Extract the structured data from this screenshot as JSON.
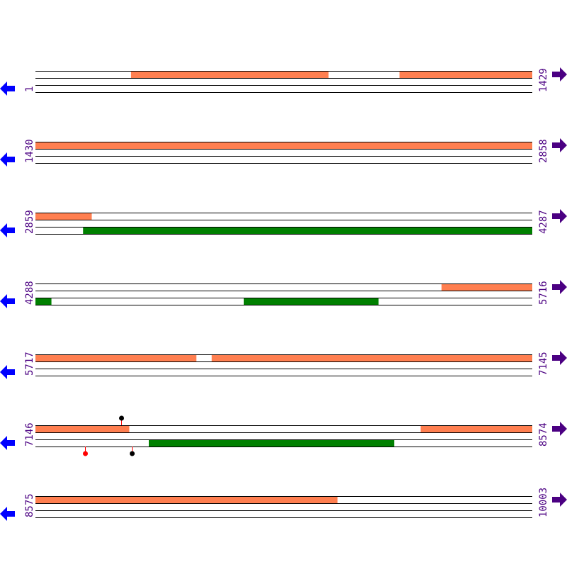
{
  "colors": {
    "feature_top": "#ff7f50",
    "feature_bottom": "#008000",
    "track_line": "#000000",
    "left_arrow": "#0000ff",
    "right_arrow": "#4b0082",
    "label": "#4b0082",
    "marker_red": "#ff0000",
    "marker_black": "#000000"
  },
  "icons": {
    "left": "arrow-left-icon",
    "right": "arrow-right-icon"
  },
  "rows": [
    {
      "start_label": "1",
      "end_label": "1429",
      "start": 1,
      "end": 1429,
      "top": [
        [
          276,
          843
        ],
        [
          1048,
          1429
        ]
      ],
      "bottom": [],
      "markers_top": [],
      "markers_bottom": []
    },
    {
      "start_label": "1430",
      "end_label": "2858",
      "start": 1430,
      "end": 2858,
      "top": [
        [
          1430,
          2858
        ]
      ],
      "bottom": [],
      "markers_top": [],
      "markers_bottom": []
    },
    {
      "start_label": "2859",
      "end_label": "4287",
      "start": 2859,
      "end": 4287,
      "top": [
        [
          2859,
          3020
        ]
      ],
      "bottom": [
        [
          2996,
          4287
        ]
      ],
      "markers_top": [],
      "markers_bottom": []
    },
    {
      "start_label": "4288",
      "end_label": "5716",
      "start": 4288,
      "end": 5716,
      "top": [
        [
          5456,
          5716
        ]
      ],
      "bottom": [
        [
          4288,
          4333
        ],
        [
          4887,
          5274
        ]
      ],
      "markers_top": [],
      "markers_bottom": []
    },
    {
      "start_label": "5717",
      "end_label": "7145",
      "start": 5717,
      "end": 7145,
      "top": [
        [
          5717,
          6179
        ],
        [
          6224,
          7145
        ]
      ],
      "bottom": [],
      "markers_top": [],
      "markers_bottom": []
    },
    {
      "start_label": "7146",
      "end_label": "8574",
      "start": 7146,
      "end": 8574,
      "top": [
        [
          7146,
          7415
        ],
        [
          8254,
          8574
        ]
      ],
      "bottom": [
        [
          7472,
          8177
        ]
      ],
      "markers_top": [
        {
          "pos": 7392,
          "stem": "#ff0000",
          "dot": "#000000"
        }
      ],
      "markers_bottom": [
        {
          "pos": 7289,
          "stem": "#ff0000",
          "dot": "#ff0000"
        },
        {
          "pos": 7423,
          "stem": "#ff0000",
          "dot": "#000000"
        }
      ]
    },
    {
      "start_label": "8575",
      "end_label": "10003",
      "start": 8575,
      "end": 10003,
      "top": [
        [
          8575,
          9443
        ]
      ],
      "bottom": [],
      "markers_top": [],
      "markers_bottom": []
    }
  ]
}
